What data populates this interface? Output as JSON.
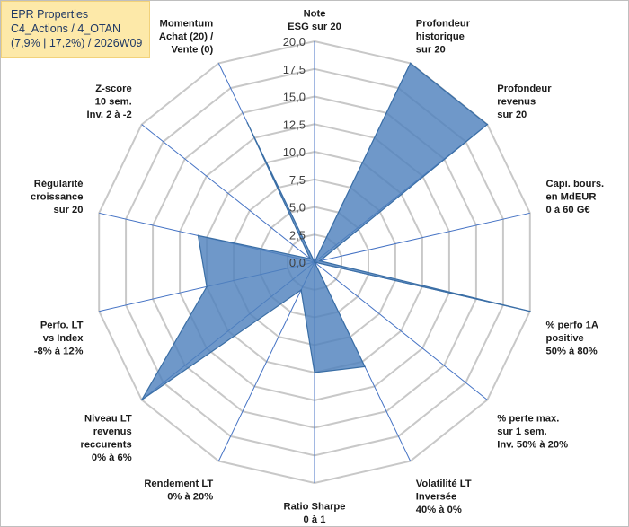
{
  "chart_data": {
    "type": "radar",
    "title_lines": [
      "EPR Properties",
      "C4_Actions / 4_OTAN",
      "(7,9% | 17,2%) / 2026W09"
    ],
    "rmin": 0,
    "rmax": 20,
    "ticks": [
      "0,0",
      "2,5",
      "5,0",
      "7,5",
      "10,0",
      "12,5",
      "15,0",
      "17,5",
      "20,0"
    ],
    "tick_values": [
      0,
      2.5,
      5,
      7.5,
      10,
      12.5,
      15,
      17.5,
      20
    ],
    "grid": true,
    "axes": [
      {
        "label": [
          "Note",
          "ESG sur 20"
        ]
      },
      {
        "label": [
          "Profondeur",
          "historique",
          "sur 20"
        ]
      },
      {
        "label": [
          "Profondeur",
          "revenus",
          "sur 20"
        ]
      },
      {
        "label": [
          "Capi. bours.",
          "en MdEUR",
          "0 à 60 G€"
        ]
      },
      {
        "label": [
          "% perfo 1A",
          "positive",
          "50% à 80%"
        ]
      },
      {
        "label": [
          "% perte max.",
          "sur 1 sem.",
          "Inv. 50% à 20%"
        ]
      },
      {
        "label": [
          "Volatilité LT",
          "Inversée",
          "40% à 0%"
        ]
      },
      {
        "label": [
          "Ratio Sharpe",
          "0 à 1"
        ]
      },
      {
        "label": [
          "Rendement LT",
          "0% à 20%"
        ]
      },
      {
        "label": [
          "Niveau LT",
          "revenus",
          "reccurents",
          "0% à 6%"
        ]
      },
      {
        "label": [
          "Perfo. LT",
          "vs Index",
          "-8% à 12%"
        ]
      },
      {
        "label": [
          "Régularité",
          "croissance",
          "sur 20"
        ]
      },
      {
        "label": [
          "Z-score",
          "10 sem.",
          "Inv. 2 à -2"
        ]
      },
      {
        "label": [
          "Momentum",
          "Achat (20) /",
          "Vente (0)"
        ]
      }
    ],
    "series": [
      {
        "name": "EPR Properties",
        "values": [
          0,
          20,
          20,
          0.5,
          20,
          0,
          10.5,
          10,
          2.8,
          20,
          10,
          10.8,
          0.5,
          14
        ],
        "fill": "#4f81bd",
        "fill_opacity": 0.82,
        "stroke": "#3a6ea5"
      }
    ],
    "colors": {
      "grid": "#c8c8c8",
      "axis": "#4472c4"
    }
  }
}
